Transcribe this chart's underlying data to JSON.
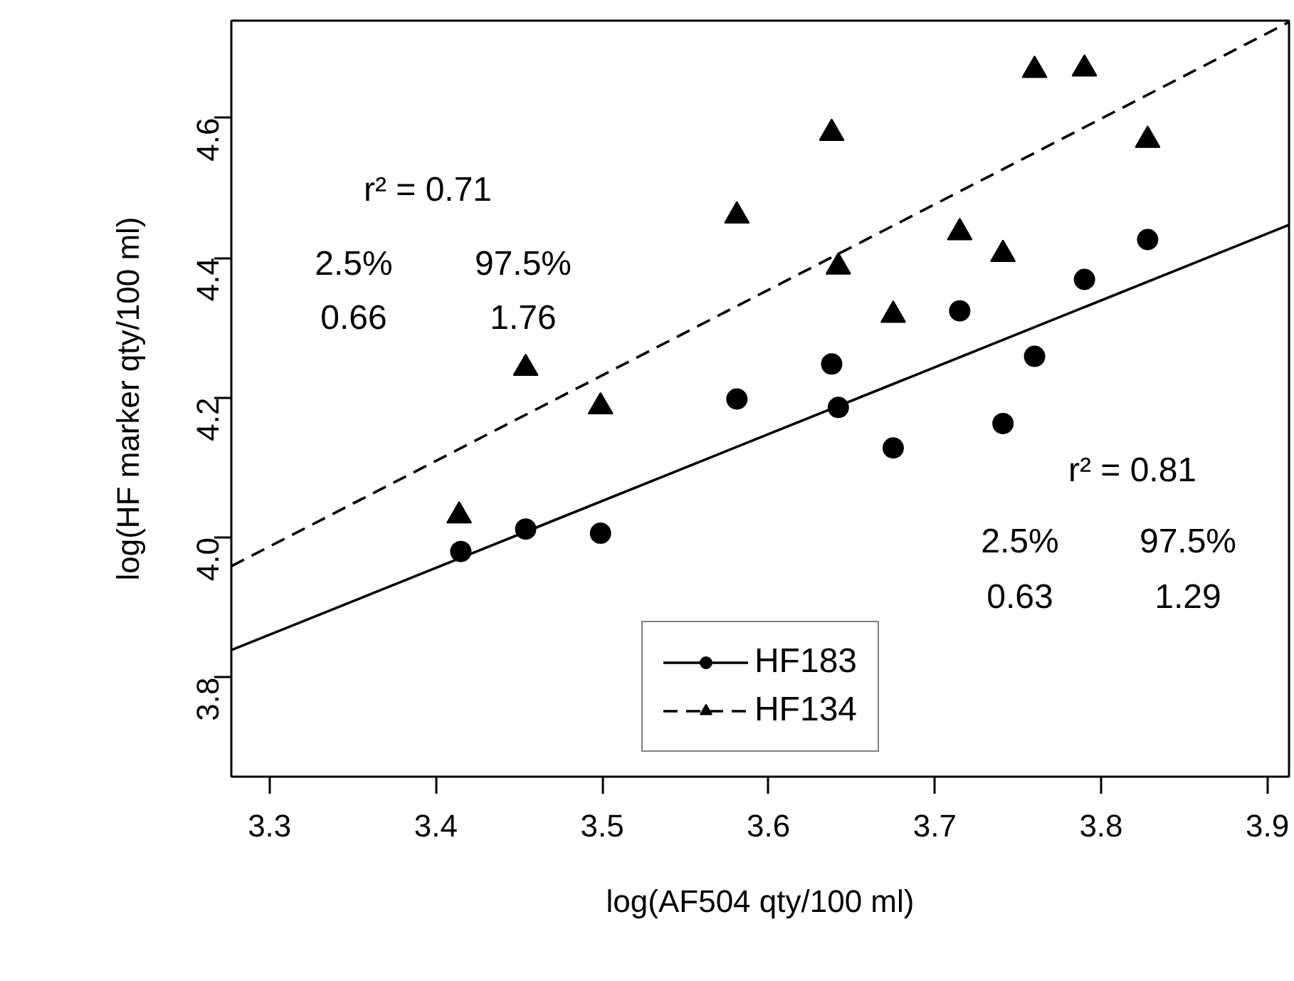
{
  "chart_data": {
    "type": "scatter",
    "xlabel": "log(AF504 qty/100 ml)",
    "ylabel": "log(HF marker qty/100 ml)",
    "xlim": [
      3.277,
      3.913
    ],
    "ylim": [
      3.658,
      4.739
    ],
    "xticks": [
      3.3,
      3.4,
      3.5,
      3.6,
      3.7,
      3.8,
      3.9
    ],
    "yticks": [
      3.8,
      {
        "value": 4.0,
        "label": "4.0"
      },
      4.2,
      4.4,
      4.6
    ],
    "grid": false,
    "legend": "bottom",
    "series": [
      {
        "name": "HF183",
        "marker": "circle",
        "color": "#000000",
        "x": [
          3.415,
          3.454,
          3.499,
          3.581,
          3.638,
          3.642,
          3.675,
          3.715,
          3.741,
          3.76,
          3.79,
          3.828
        ],
        "values": [
          3.98,
          4.012,
          4.006,
          4.198,
          4.248,
          4.186,
          4.128,
          4.324,
          4.163,
          4.259,
          4.369,
          4.426
        ]
      },
      {
        "name": "HF134",
        "marker": "triangle",
        "color": "#000000",
        "x": [
          3.414,
          3.454,
          3.499,
          3.581,
          3.638,
          3.642,
          3.675,
          3.715,
          3.741,
          3.76,
          3.79,
          3.828
        ],
        "values": [
          4.031,
          4.242,
          4.187,
          4.46,
          4.578,
          4.387,
          4.318,
          4.436,
          4.405,
          4.668,
          4.67,
          4.568
        ]
      },
      {
        "type": "line",
        "line_style": "solid",
        "color": "#000000",
        "x": [
          3.277,
          3.913
        ],
        "values": [
          3.839,
          4.447
        ]
      },
      {
        "type": "line",
        "line_style": "dashed",
        "color": "#000000",
        "x": [
          3.277,
          3.913
        ],
        "values": [
          3.959,
          4.737
        ]
      }
    ],
    "annotations": [
      "r² = 0.71",
      "2.5%",
      "97.5%",
      "0.66",
      "1.76",
      "r² = 0.81",
      "2.5%",
      "97.5%",
      "0.63",
      "1.29"
    ]
  }
}
